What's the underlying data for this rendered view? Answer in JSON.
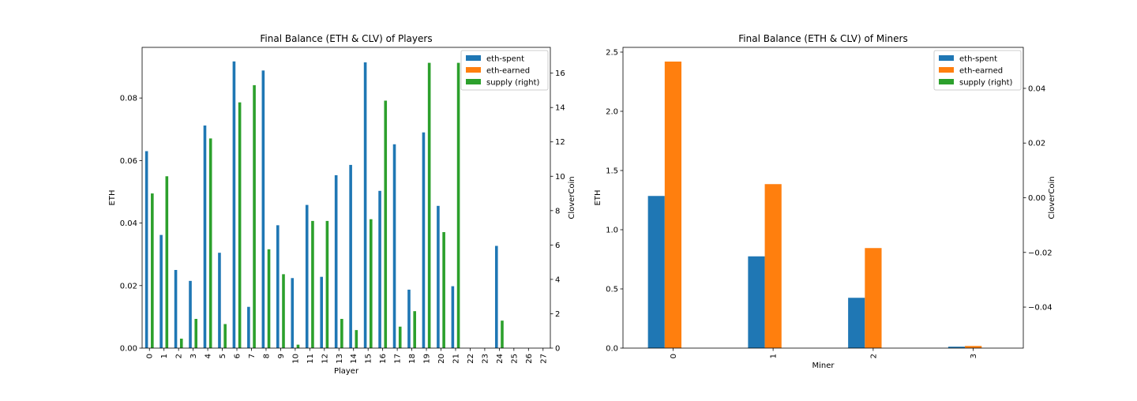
{
  "colors": {
    "eth_spent": "#1f77b4",
    "eth_earned": "#ff7f0e",
    "supply": "#2ca02c"
  },
  "chart_data": [
    {
      "type": "bar",
      "title": "Final Balance (ETH & CLV) of Players",
      "xlabel": "Player",
      "ylabel": "ETH",
      "ylabel_right": "CloverCoin",
      "categories": [
        "0",
        "1",
        "2",
        "3",
        "4",
        "5",
        "6",
        "7",
        "8",
        "9",
        "10",
        "11",
        "12",
        "13",
        "14",
        "15",
        "16",
        "17",
        "18",
        "19",
        "20",
        "21",
        "22",
        "23",
        "24",
        "25",
        "26",
        "27"
      ],
      "ylim": [
        0,
        0.0962
      ],
      "ylim_right": [
        0,
        17.5
      ],
      "yticks": [
        0,
        0.02,
        0.04,
        0.06,
        0.08
      ],
      "ytick_labels": [
        "0.00",
        "0.02",
        "0.04",
        "0.06",
        "0.08"
      ],
      "yticks_right": [
        0,
        2,
        4,
        6,
        8,
        10,
        12,
        14,
        16
      ],
      "ytick_labels_right": [
        "0",
        "2",
        "4",
        "6",
        "8",
        "10",
        "12",
        "14",
        "16"
      ],
      "legend": {
        "placement": "top-right",
        "entries": [
          "eth-spent",
          "eth-earned",
          "supply (right)"
        ]
      },
      "series": [
        {
          "name": "eth-spent",
          "axis": "left",
          "values": [
            0.063,
            0.0362,
            0.025,
            0.0215,
            0.0712,
            0.0305,
            0.0917,
            0.0132,
            0.0888,
            0.0393,
            0.0224,
            0.0458,
            0.0228,
            0.0553,
            0.0586,
            0.0914,
            0.0503,
            0.0652,
            0.0187,
            0.069,
            0.0455,
            0.0198,
            0,
            0,
            0.0327,
            0,
            0,
            0
          ]
        },
        {
          "name": "eth-earned",
          "axis": "left",
          "values": [
            0,
            0,
            0,
            0,
            0,
            0,
            0,
            0,
            0,
            0,
            0,
            0,
            0,
            0,
            0,
            0,
            0,
            0,
            0,
            0,
            0,
            0,
            0,
            0,
            0,
            0,
            0,
            0
          ]
        },
        {
          "name": "supply (right)",
          "axis": "right",
          "values": [
            9.0,
            10.0,
            0.55,
            1.7,
            12.2,
            1.4,
            14.3,
            15.3,
            5.75,
            4.3,
            0.2,
            7.4,
            7.4,
            1.7,
            1.05,
            7.5,
            14.4,
            1.25,
            2.15,
            16.6,
            6.75,
            16.6,
            0,
            0,
            1.6,
            0,
            0,
            0
          ]
        }
      ]
    },
    {
      "type": "bar",
      "title": "Final Balance (ETH & CLV) of Miners",
      "xlabel": "Miner",
      "ylabel": "ETH",
      "ylabel_right": "CloverCoin",
      "categories": [
        "0",
        "1",
        "2",
        "3"
      ],
      "ylim": [
        0,
        2.54
      ],
      "ylim_right": [
        -0.055,
        0.055
      ],
      "yticks": [
        0,
        0.5,
        1.0,
        1.5,
        2.0,
        2.5
      ],
      "ytick_labels": [
        "0.0",
        "0.5",
        "1.0",
        "1.5",
        "2.0",
        "2.5"
      ],
      "yticks_right": [
        -0.04,
        -0.02,
        0,
        0.02,
        0.04
      ],
      "ytick_labels_right": [
        "−0.04",
        "−0.02",
        "0.00",
        "0.02",
        "0.04"
      ],
      "legend": {
        "placement": "top-right",
        "entries": [
          "eth-spent",
          "eth-earned",
          "supply (right)"
        ]
      },
      "series": [
        {
          "name": "eth-spent",
          "axis": "left",
          "values": [
            1.285,
            0.775,
            0.425,
            0.012
          ]
        },
        {
          "name": "eth-earned",
          "axis": "left",
          "values": [
            2.42,
            1.385,
            0.845,
            0.018
          ]
        },
        {
          "name": "supply (right)",
          "axis": "right",
          "values": [
            0,
            0,
            0,
            0
          ]
        }
      ]
    }
  ]
}
